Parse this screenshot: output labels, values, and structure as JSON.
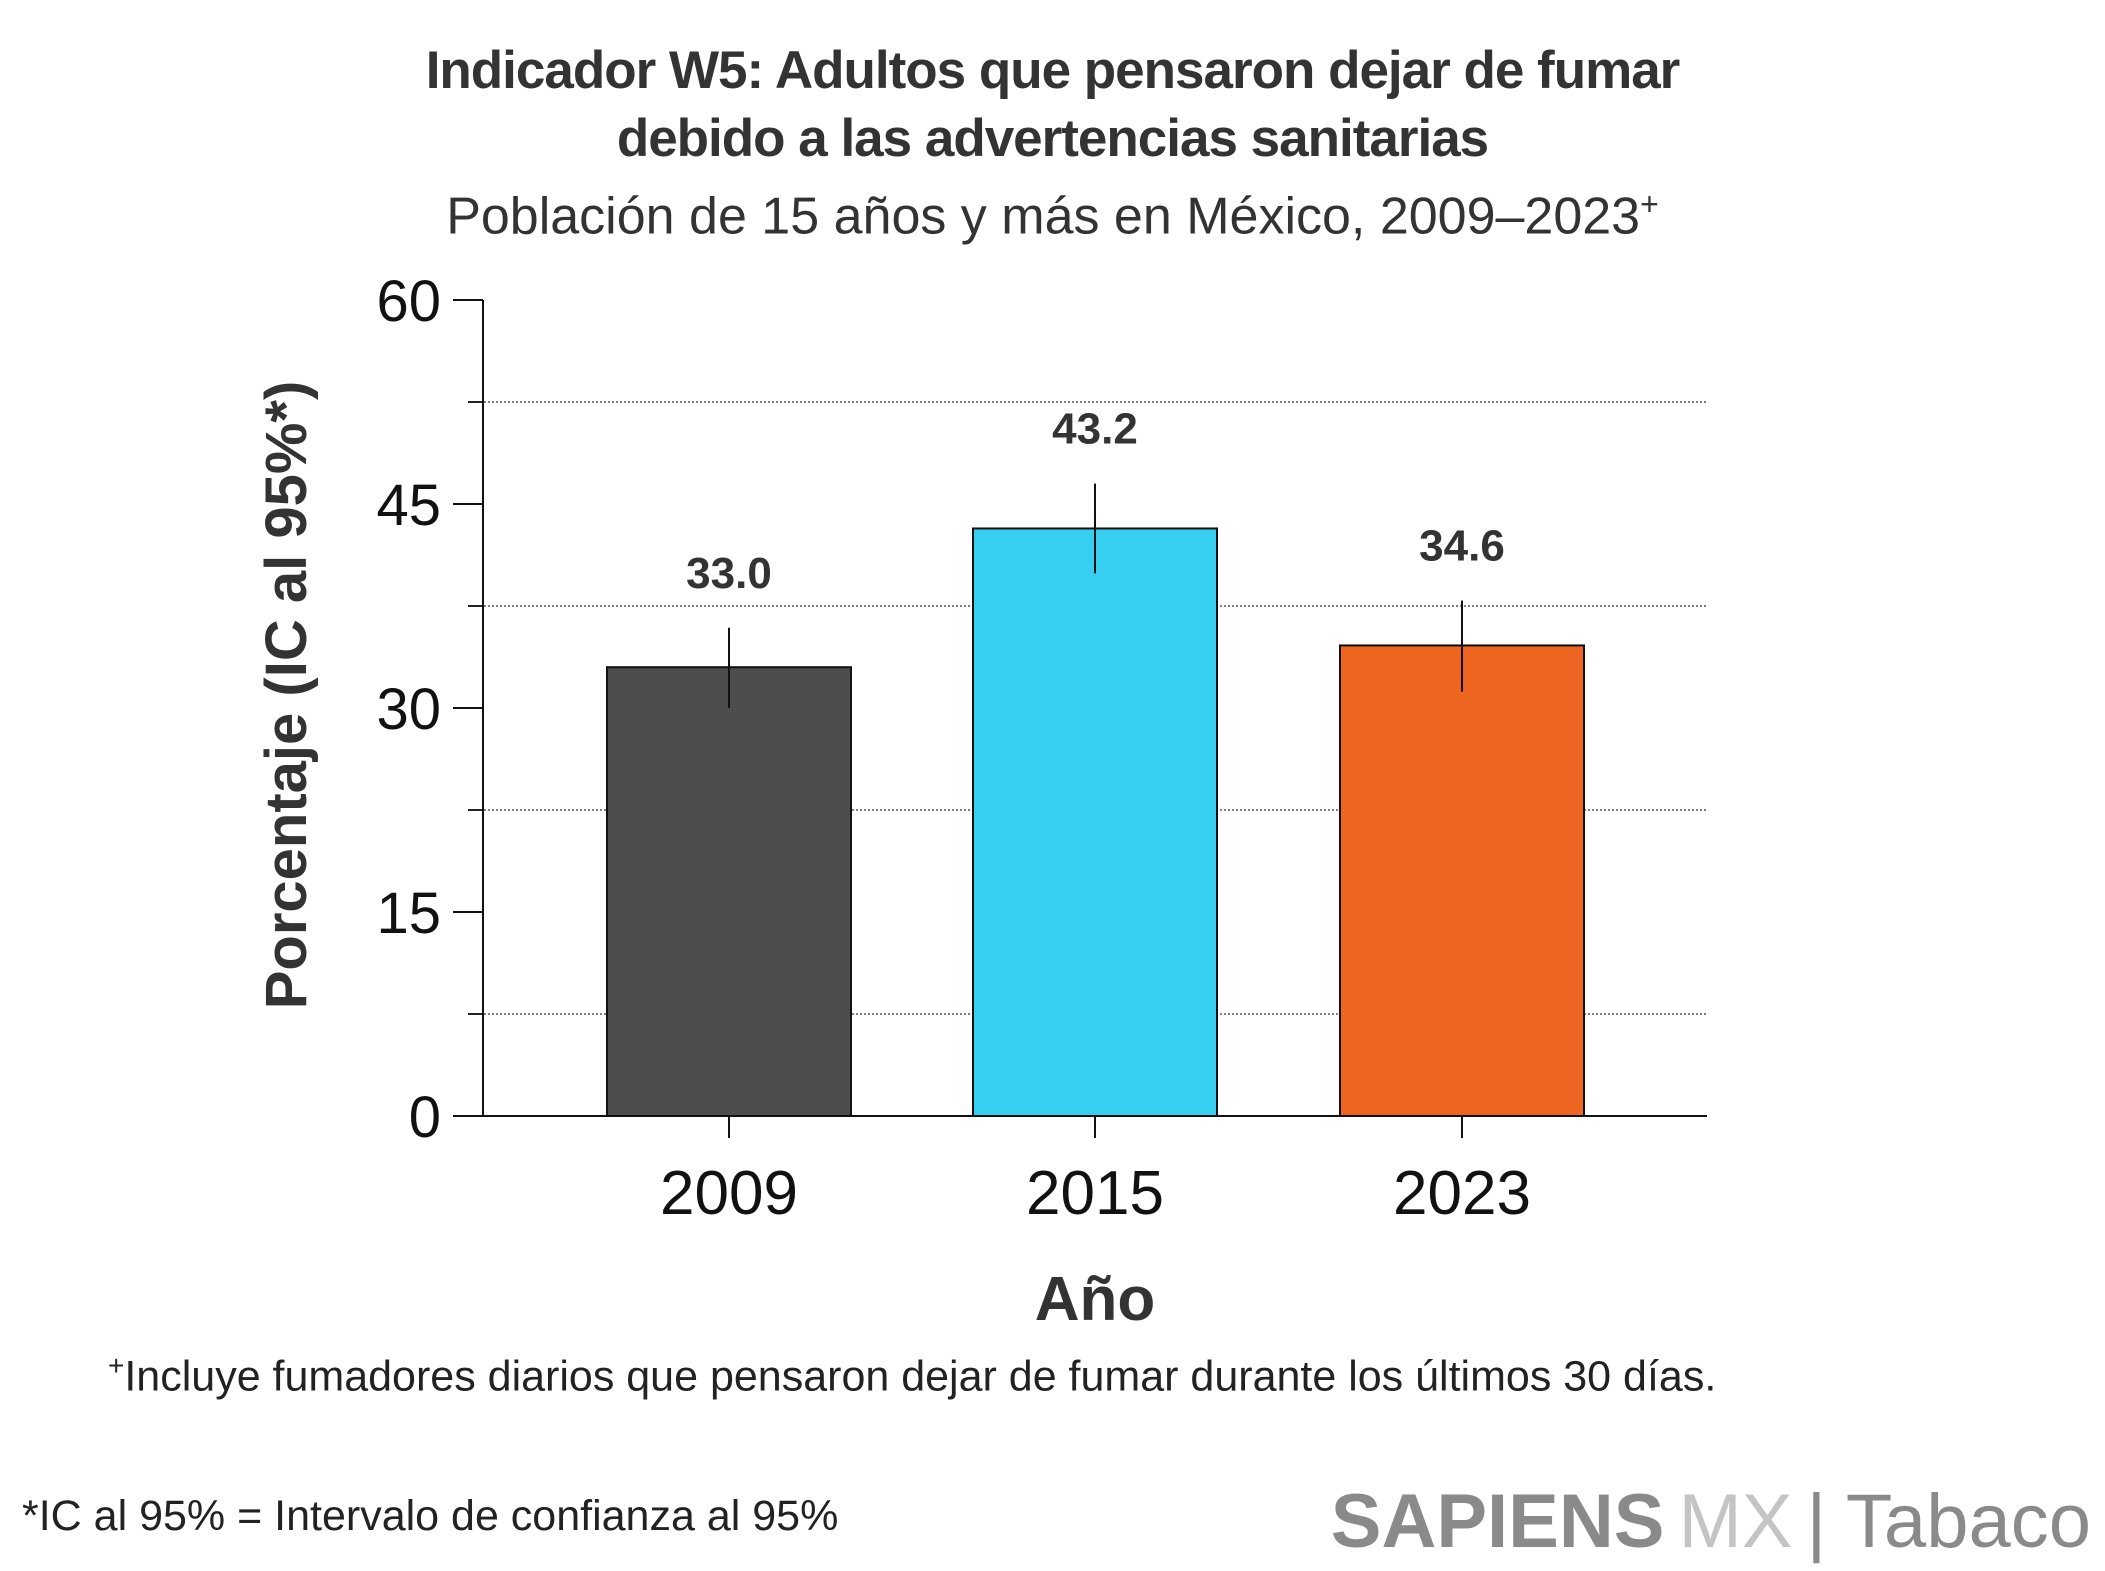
{
  "title_line1": "Indicador W5: Adultos que pensaron dejar de fumar",
  "title_line2": "debido a las advertencias sanitarias",
  "subtitle": "Población de 15 años y más en México, 2009–2023",
  "subtitle_mark": "+",
  "footnote_mark": "+",
  "footnote": "Incluye fumadores diarios que pensaron dejar de fumar durante los últimos 30 días.",
  "ci_note": "*IC al 95% = Intervalo de confianza al 95%",
  "logo": {
    "part1": "SAPIENS",
    "part2": "MX",
    "part3": "| Tabaco"
  },
  "chart_data": {
    "type": "bar",
    "categories": [
      "2009",
      "2015",
      "2023"
    ],
    "values": [
      33.0,
      43.2,
      34.6
    ],
    "data_labels": [
      "33.0",
      "43.2",
      "34.6"
    ],
    "ci_lower": [
      30.0,
      39.9,
      31.2
    ],
    "ci_upper": [
      35.9,
      46.5,
      37.9
    ],
    "colors": [
      "#4d4d4d",
      "#36cfef",
      "#ee6421"
    ],
    "xlabel": "Año",
    "ylabel": "Porcentaje (IC al 95%*)",
    "ylim": [
      0,
      60
    ],
    "yticks": [
      "0",
      "15",
      "30",
      "45",
      "60"
    ],
    "ytick_values": [
      0,
      15,
      30,
      45,
      60
    ],
    "minor_grid_values": [
      7.5,
      22.5,
      37.5,
      52.5
    ],
    "grid": "dotted minor gridlines"
  }
}
